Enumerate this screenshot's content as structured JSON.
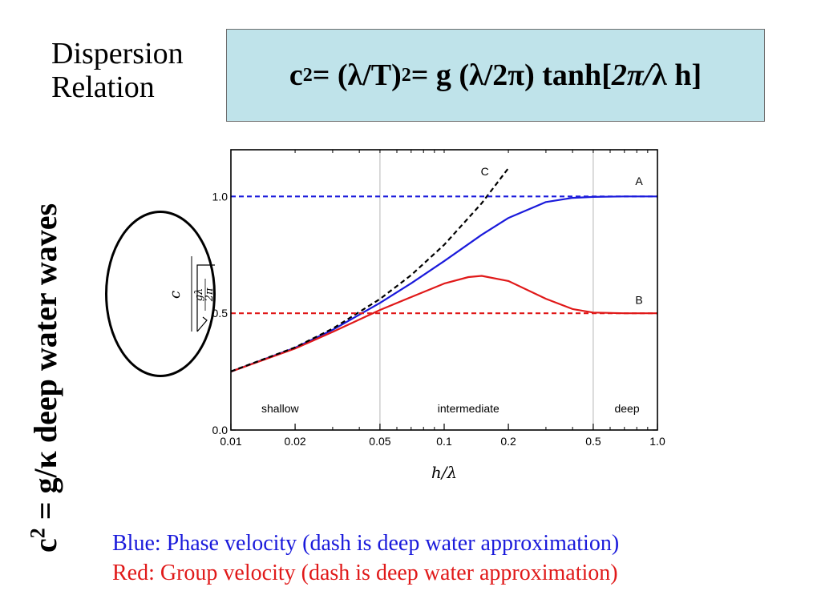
{
  "title": {
    "line1": "Dispersion",
    "line2": "Relation"
  },
  "formula": {
    "p1": "c",
    "p1_sup": "2",
    "p2": " = (λ/T)",
    "p2_sup": "2",
    "p3": " = g (λ/2π) tanh[",
    "p4": "2π/",
    "p5": "λ h]"
  },
  "side_text": {
    "a": "c",
    "a_sup": "2",
    "b": " = g/κ  deep water waves"
  },
  "caption": {
    "blue": "Blue: Phase velocity (dash is deep water approximation)",
    "red": "Red: Group velocity (dash is deep water approximation)"
  },
  "colors": {
    "blue": "#1a1adb",
    "red": "#e01919",
    "box": "#bfe3ea",
    "black": "#000000"
  },
  "chart_data": {
    "type": "line",
    "x_scale": "log",
    "xlim": [
      0.01,
      1.0
    ],
    "ylim": [
      0.0,
      1.2
    ],
    "xlabel": "h/λ",
    "ylabel": {
      "numerator": "c",
      "radicand_num": "gλ",
      "radicand_den": "2π"
    },
    "x_ticks": [
      {
        "value": 0.01,
        "label": "0.01"
      },
      {
        "value": 0.02,
        "label": "0.02"
      },
      {
        "value": 0.05,
        "label": "0.05"
      },
      {
        "value": 0.1,
        "label": "0.1"
      },
      {
        "value": 0.2,
        "label": "0.2"
      },
      {
        "value": 0.5,
        "label": "0.5"
      },
      {
        "value": 1.0,
        "label": "1.0"
      }
    ],
    "y_ticks": [
      {
        "value": 0.0,
        "label": "0.0"
      },
      {
        "value": 0.5,
        "label": "0.5"
      },
      {
        "value": 1.0,
        "label": "1.0"
      }
    ],
    "regions": [
      {
        "label": "shallow",
        "x": 0.017
      },
      {
        "label": "intermediate",
        "x": 0.13
      },
      {
        "label": "deep",
        "x": 0.72
      }
    ],
    "region_boundaries": [
      0.05,
      0.5
    ],
    "series": [
      {
        "name": "A",
        "color": "#1a1adb",
        "style": "solid",
        "x": [
          0.01,
          0.02,
          0.03,
          0.05,
          0.07,
          0.1,
          0.15,
          0.2,
          0.3,
          0.4,
          0.5,
          0.7,
          1.0
        ],
        "y": [
          0.25,
          0.352,
          0.429,
          0.544,
          0.628,
          0.723,
          0.836,
          0.908,
          0.976,
          0.994,
          0.998,
          1.0,
          1.0
        ]
      },
      {
        "name": "B",
        "color": "#e01919",
        "style": "solid",
        "x": [
          0.01,
          0.02,
          0.03,
          0.05,
          0.07,
          0.1,
          0.13,
          0.15,
          0.2,
          0.3,
          0.4,
          0.5,
          0.7,
          1.0
        ],
        "y": [
          0.25,
          0.349,
          0.42,
          0.514,
          0.569,
          0.627,
          0.655,
          0.66,
          0.638,
          0.562,
          0.518,
          0.503,
          0.5,
          0.5
        ]
      },
      {
        "name": "C",
        "color": "#000000",
        "style": "dashed",
        "x": [
          0.01,
          0.02,
          0.03,
          0.05,
          0.07,
          0.1,
          0.15,
          0.2
        ],
        "y": [
          0.251,
          0.354,
          0.434,
          0.561,
          0.663,
          0.793,
          0.971,
          1.121
        ]
      },
      {
        "name": "A deep",
        "color": "#1a1adb",
        "style": "dashed",
        "x": [
          0.01,
          1.0
        ],
        "y": [
          1.0,
          1.0
        ]
      },
      {
        "name": "B deep",
        "color": "#e01919",
        "style": "dashed",
        "x": [
          0.01,
          1.0
        ],
        "y": [
          0.5,
          0.5
        ]
      }
    ],
    "curve_labels": [
      {
        "label": "A",
        "x": 0.82,
        "y": 1.05
      },
      {
        "label": "B",
        "x": 0.82,
        "y": 0.54
      },
      {
        "label": "C",
        "x": 0.155,
        "y": 1.09
      }
    ]
  }
}
